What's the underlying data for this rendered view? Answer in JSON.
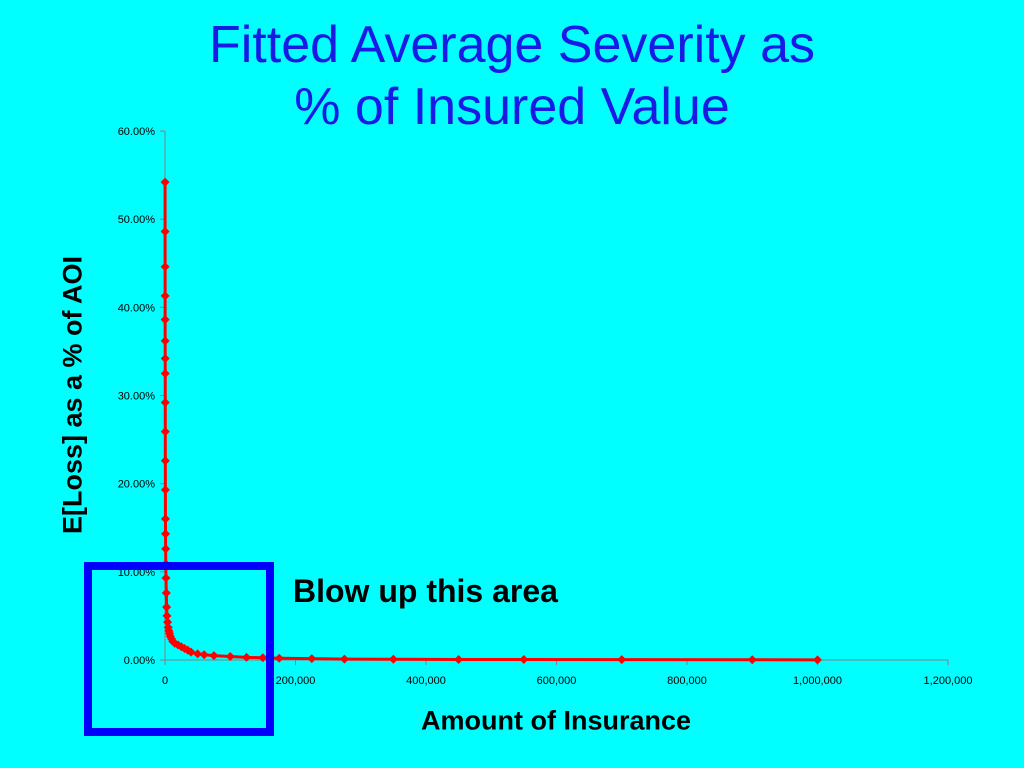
{
  "chart_data": {
    "type": "line",
    "title_lines": [
      "Fitted Average Severity as",
      "% of Insured Value"
    ],
    "xlabel": "Amount of Insurance",
    "ylabel": "E[Loss] as a % of AOI",
    "xlim": [
      0,
      1200000
    ],
    "ylim": [
      0,
      0.6
    ],
    "x_ticks": [
      0,
      200000,
      400000,
      600000,
      800000,
      1000000,
      1200000
    ],
    "x_tick_labels": [
      "0",
      "200,000",
      "400,000",
      "600,000",
      "800,000",
      "1,000,000",
      "1,200,000"
    ],
    "y_ticks": [
      0,
      0.1,
      0.2,
      0.3,
      0.4,
      0.5,
      0.6
    ],
    "y_tick_labels": [
      "0.00%",
      "10.00%",
      "20.00%",
      "30.00%",
      "40.00%",
      "50.00%",
      "60.00%"
    ],
    "grid": false,
    "series": [
      {
        "color": "#FF0000",
        "marker": "diamond",
        "x": [
          100,
          120,
          150,
          180,
          200,
          250,
          300,
          350,
          400,
          450,
          500,
          600,
          700,
          800,
          1000,
          1200,
          1500,
          2000,
          2500,
          3000,
          4000,
          5000,
          6000,
          7000,
          8000,
          10000,
          12000,
          15000,
          20000,
          25000,
          30000,
          35000,
          40000,
          50000,
          60000,
          75000,
          100000,
          125000,
          150000,
          175000,
          225000,
          275000,
          350000,
          450000,
          550000,
          700000,
          900000,
          1000000
        ],
        "y": [
          0.542,
          0.486,
          0.446,
          0.413,
          0.386,
          0.362,
          0.342,
          0.325,
          0.292,
          0.259,
          0.226,
          0.193,
          0.16,
          0.143,
          0.126,
          0.109,
          0.093,
          0.076,
          0.06,
          0.05,
          0.043,
          0.037,
          0.033,
          0.03,
          0.027,
          0.024,
          0.021,
          0.019,
          0.017,
          0.015,
          0.013,
          0.011,
          0.009,
          0.007,
          0.006,
          0.005,
          0.004,
          0.003,
          0.0025,
          0.002,
          0.0015,
          0.001,
          0.0008,
          0.0006,
          0.0005,
          0.0004,
          0.0003,
          0.0002
        ]
      }
    ]
  },
  "annotation": "Blow up this area"
}
